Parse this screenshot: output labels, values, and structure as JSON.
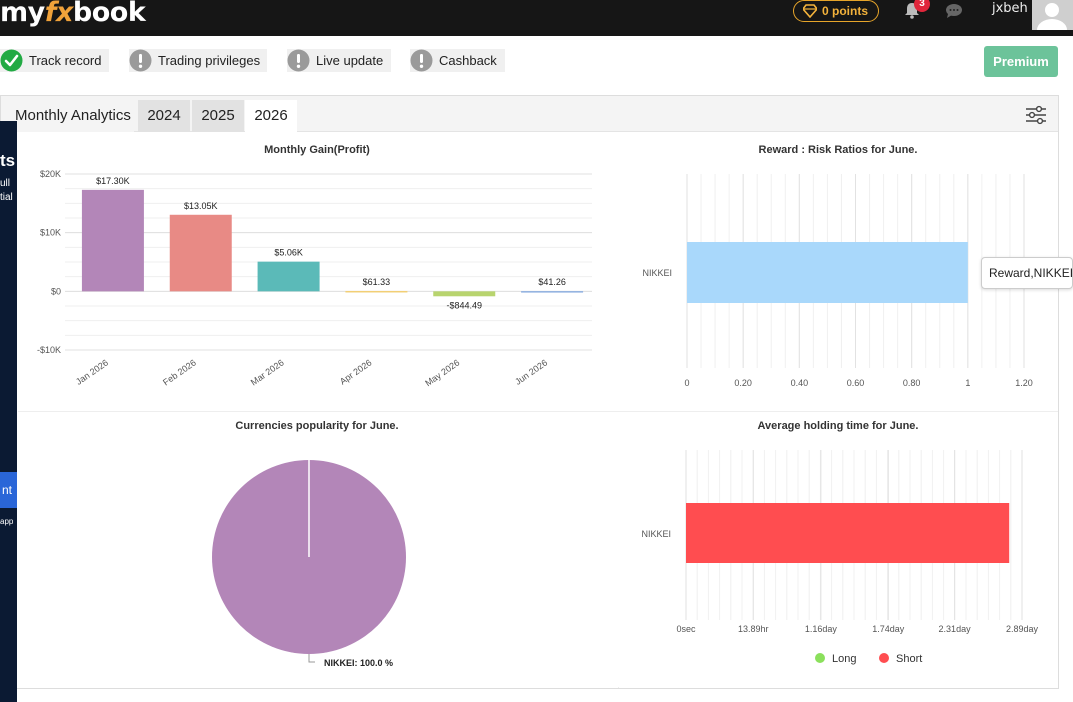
{
  "nav": {
    "logo_left": "my",
    "logo_fx": "fx",
    "logo_right": "book",
    "points": "0 points",
    "notifications": "3",
    "username": "jxbeh"
  },
  "left_strip": {
    "t1": "ts",
    "t2": "ull",
    "t3": "tial",
    "t4": "nt",
    "t5": "app"
  },
  "privileges": [
    {
      "label": "Track record",
      "status": "ok"
    },
    {
      "label": "Trading privileges",
      "status": "warn"
    },
    {
      "label": "Live update",
      "status": "warn"
    },
    {
      "label": "Cashback",
      "status": "warn"
    }
  ],
  "premium_label": "Premium",
  "analytics": {
    "title": "Monthly Analytics",
    "years": [
      "2024",
      "2025",
      "2026"
    ],
    "active_year": "2026"
  },
  "tooltip": "Reward,NIKKEI,",
  "colors": {
    "ok": "#22aa44",
    "warn": "#9a9a9a",
    "premium": "#6cc39a"
  },
  "chart_data": [
    {
      "type": "bar",
      "title": "Monthly Gain(Profit)",
      "categories": [
        "Jan 2026",
        "Feb 2026",
        "Mar 2026",
        "Apr 2026",
        "May 2026",
        "Jun 2026"
      ],
      "values": [
        17300,
        13050,
        5060,
        61.33,
        -844.49,
        41.26
      ],
      "value_labels": [
        "$17.30K",
        "$13.05K",
        "$5.06K",
        "$61.33",
        "-$844.49",
        "$41.26"
      ],
      "colors": [
        "#b386b8",
        "#e88a85",
        "#5bbab8",
        "#f2cf75",
        "#b8d46e",
        "#8fb0e0"
      ],
      "y_ticks": [
        20000,
        10000,
        0,
        -10000
      ],
      "y_tick_labels": [
        "$20K",
        "$10K",
        "$0",
        "-$10K"
      ],
      "ylim": [
        -10000,
        20000
      ]
    },
    {
      "type": "bar",
      "orientation": "horizontal",
      "title": "Reward : Risk Ratios for June.",
      "categories": [
        "NIKKEI"
      ],
      "values": [
        1
      ],
      "color": "#a9d8fb",
      "x_ticks": [
        0,
        0.2,
        0.4,
        0.6,
        0.8,
        1,
        1.2
      ],
      "x_tick_labels": [
        "0",
        "0.20",
        "0.40",
        "0.60",
        "0.80",
        "1",
        "1.20"
      ],
      "xlim": [
        0,
        1.2
      ]
    },
    {
      "type": "pie",
      "title": "Currencies popularity for June.",
      "labels": [
        "NIKKEI"
      ],
      "values": [
        100.0
      ],
      "slice_labels": [
        "NIKKEI: 100.0 %"
      ],
      "colors": [
        "#b386b8"
      ]
    },
    {
      "type": "bar",
      "orientation": "horizontal",
      "title": "Average holding time for June.",
      "categories": [
        "NIKKEI"
      ],
      "series": [
        {
          "name": "Long",
          "values": [
            0
          ],
          "color": "#8be05c"
        },
        {
          "name": "Short",
          "values": [
            2.78
          ],
          "color": "#ff4d50"
        }
      ],
      "x_ticks": [
        0,
        0.5787,
        1.16,
        1.74,
        2.31,
        2.89
      ],
      "x_tick_labels": [
        "0sec",
        "13.89hr",
        "1.16day",
        "1.74day",
        "2.31day",
        "2.89day"
      ],
      "xlim": [
        0,
        2.89
      ],
      "x_unit": "day"
    }
  ]
}
